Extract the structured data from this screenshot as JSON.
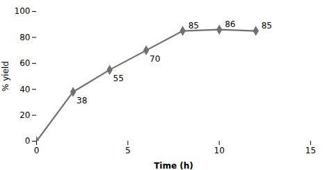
{
  "chart_data": {
    "type": "line",
    "xlabel": "Time (h)",
    "ylabel": "% yield",
    "x": [
      0,
      2,
      4,
      6,
      8,
      10,
      12
    ],
    "values": [
      0,
      38,
      55,
      70,
      85,
      86,
      85
    ],
    "color": "#707070",
    "marker": "diamond",
    "annotations": [
      {
        "x": 2,
        "y": 38,
        "label": "38"
      },
      {
        "x": 4,
        "y": 55,
        "label": "55"
      },
      {
        "x": 6,
        "y": 70,
        "label": "70"
      },
      {
        "x": 8,
        "y": 85,
        "label": "85"
      },
      {
        "x": 10,
        "y": 86,
        "label": "86"
      },
      {
        "x": 12,
        "y": 85,
        "label": "85"
      }
    ],
    "xlim": [
      0,
      15
    ],
    "xticks": [
      0,
      5,
      10,
      15
    ],
    "ylim": [
      0,
      100
    ],
    "yticks": [
      0,
      20,
      40,
      60,
      80,
      100
    ],
    "grid": false
  }
}
